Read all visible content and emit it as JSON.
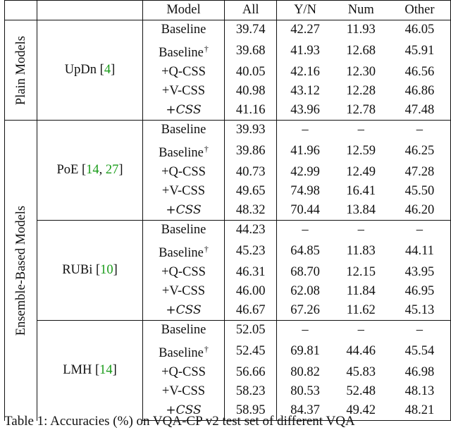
{
  "header": {
    "model": "Model",
    "all": "All",
    "yn": "Y/N",
    "num": "Num",
    "other": "Other"
  },
  "groups": [
    {
      "label": "Plain Models",
      "archs": [
        {
          "name": "UpDn",
          "cites": [
            "4"
          ],
          "rows": [
            {
              "model": "Baseline",
              "dagger": false,
              "all": "39.74",
              "yn": "42.27",
              "num": "11.93",
              "other": "46.05",
              "bold": []
            },
            {
              "model": "Baseline",
              "dagger": true,
              "all": "39.68",
              "yn": "41.93",
              "num": "12.68",
              "other": "45.91",
              "bold": []
            },
            {
              "model": "+Q-CSS",
              "dagger": false,
              "all": "40.05",
              "yn": "42.16",
              "num": "12.30",
              "other": "46.56",
              "bold": []
            },
            {
              "model": "+V-CSS",
              "dagger": false,
              "all": "40.98",
              "yn": "43.12",
              "num": "12.28",
              "other": "46.86",
              "bold": []
            },
            {
              "model": "+CSS",
              "script": true,
              "dagger": false,
              "all": "41.16",
              "yn": "43.96",
              "num": "12.78",
              "other": "47.48",
              "bold": [
                "all",
                "yn",
                "num",
                "other"
              ]
            }
          ]
        }
      ]
    },
    {
      "label": "Ensemble-Based Models",
      "archs": [
        {
          "name": "PoE",
          "cites": [
            "14",
            "27"
          ],
          "rows": [
            {
              "model": "Baseline",
              "dagger": false,
              "all": "39.93",
              "yn": "–",
              "num": "–",
              "other": "–",
              "bold": []
            },
            {
              "model": "Baseline",
              "dagger": true,
              "all": "39.86",
              "yn": "41.96",
              "num": "12.59",
              "other": "46.25",
              "bold": []
            },
            {
              "model": "+Q-CSS",
              "dagger": false,
              "all": "40.73",
              "yn": "42.99",
              "num": "12.49",
              "other": "47.28",
              "bold": [
                "other"
              ]
            },
            {
              "model": "+V-CSS",
              "dagger": false,
              "all": "49.65",
              "yn": "74.98",
              "num": "16.41",
              "other": "45.50",
              "bold": [
                "all",
                "yn",
                "num"
              ]
            },
            {
              "model": "+CSS",
              "script": true,
              "dagger": false,
              "all": "48.32",
              "yn": "70.44",
              "num": "13.84",
              "other": "46.20",
              "bold": []
            }
          ]
        },
        {
          "name": "RUBi",
          "cites": [
            "10"
          ],
          "rows": [
            {
              "model": "Baseline",
              "dagger": false,
              "all": "44.23",
              "yn": "–",
              "num": "–",
              "other": "–",
              "bold": []
            },
            {
              "model": "Baseline",
              "dagger": true,
              "all": "45.23",
              "yn": "64.85",
              "num": "11.83",
              "other": "44.11",
              "bold": []
            },
            {
              "model": "+Q-CSS",
              "dagger": false,
              "all": "46.31",
              "yn": "68.70",
              "num": "12.15",
              "other": "43.95",
              "bold": [
                "yn",
                "num"
              ]
            },
            {
              "model": "+V-CSS",
              "dagger": false,
              "all": "46.00",
              "yn": "62.08",
              "num": "11.84",
              "other": "46.95",
              "bold": [
                "other"
              ]
            },
            {
              "model": "+CSS",
              "script": true,
              "dagger": false,
              "all": "46.67",
              "yn": "67.26",
              "num": "11.62",
              "other": "45.13",
              "bold": [
                "all"
              ]
            }
          ]
        },
        {
          "name": "LMH",
          "cites": [
            "14"
          ],
          "rows": [
            {
              "model": "Baseline",
              "dagger": false,
              "all": "52.05",
              "yn": "–",
              "num": "–",
              "other": "–",
              "bold": []
            },
            {
              "model": "Baseline",
              "dagger": true,
              "all": "52.45",
              "yn": "69.81",
              "num": "44.46",
              "other": "45.54",
              "bold": []
            },
            {
              "model": "+Q-CSS",
              "dagger": false,
              "all": "56.66",
              "yn": "80.82",
              "num": "45.83",
              "other": "46.98",
              "bold": []
            },
            {
              "model": "+V-CSS",
              "dagger": false,
              "all": "58.23",
              "yn": "80.53",
              "num": "52.48",
              "other": "48.13",
              "bold": [
                "num"
              ]
            },
            {
              "model": "+CSS",
              "script": true,
              "dagger": false,
              "all": "58.95",
              "yn": "84.37",
              "num": "49.42",
              "other": "48.21",
              "bold": [
                "all",
                "yn",
                "other"
              ]
            }
          ]
        }
      ]
    }
  ],
  "caption": "Table 1: Accuracies (%) on VQA-CP v2 test set of different VQA"
}
